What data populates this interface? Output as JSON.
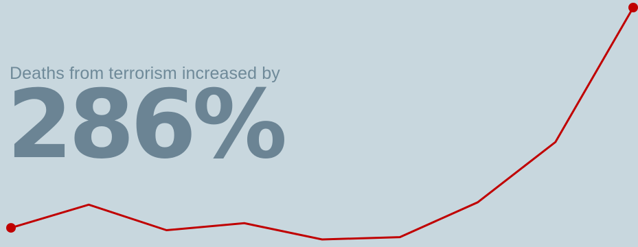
{
  "headline": {
    "subtitle": "Deaths from terrorism increased by",
    "value": "286%"
  },
  "colors": {
    "background": "#c8d7de",
    "line": "#c00000",
    "text": "#6b8494"
  },
  "chart_data": {
    "type": "line",
    "title": "",
    "xlabel": "",
    "ylabel": "",
    "grid": false,
    "legend": "none",
    "x": [
      1,
      2,
      3,
      4,
      5,
      6,
      7,
      8,
      9
    ],
    "ylim": [
      0,
      100
    ],
    "series": [
      {
        "values": [
          5,
          15,
          4,
          7,
          0,
          1,
          16,
          42,
          100
        ]
      }
    ],
    "endpoint_markers": true
  }
}
